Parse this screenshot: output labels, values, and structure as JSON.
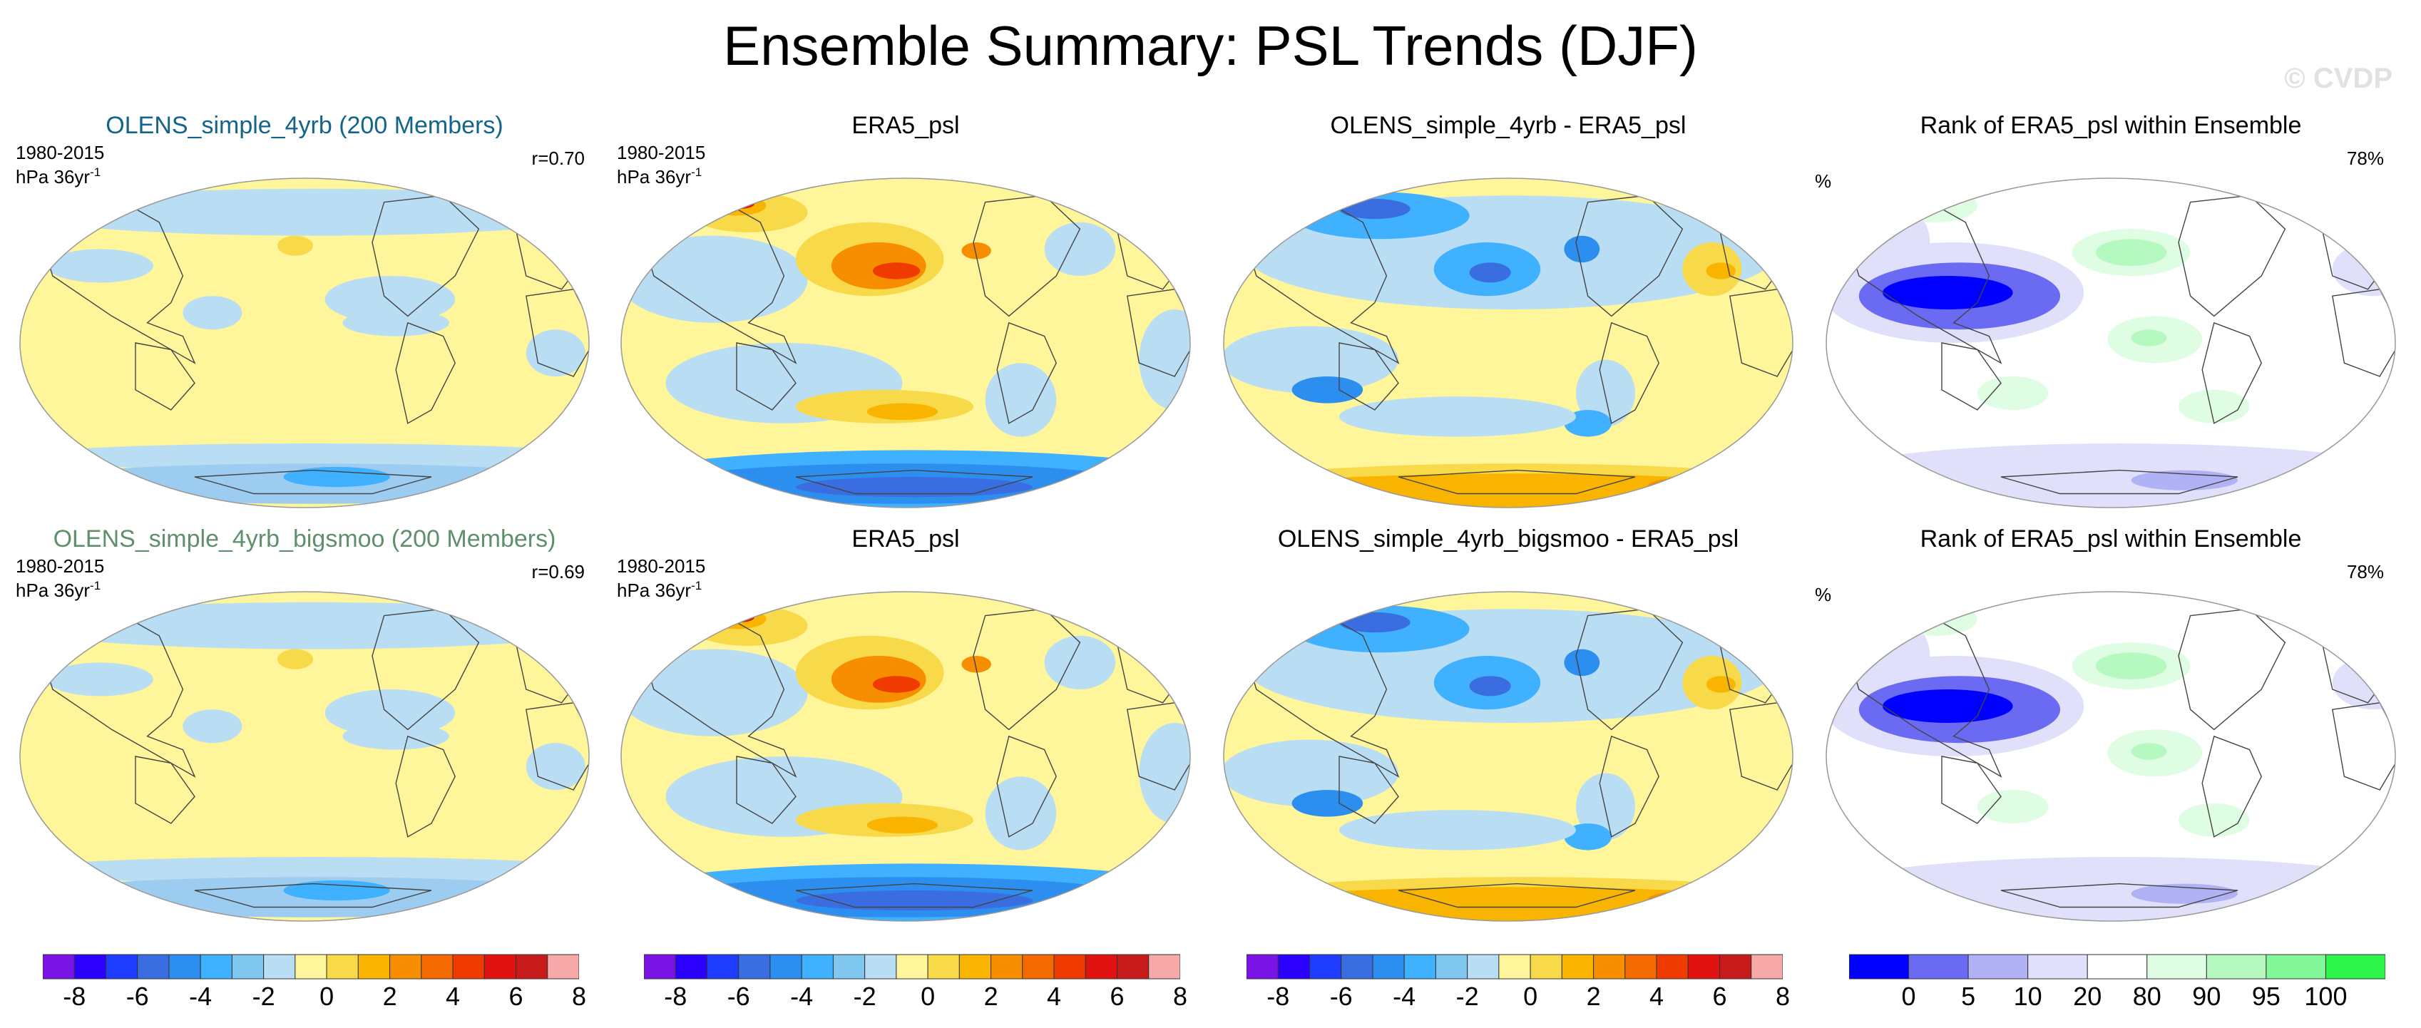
{
  "title": "Ensemble Summary: PSL Trends (DJF)",
  "watermark": "© CVDP",
  "colors": {
    "model_title_row1": "#13648c",
    "model_title_row2": "#5f8f6d",
    "coast": "#444444",
    "psl_scale": [
      "#7a14e6",
      "#2b00ff",
      "#1e3cff",
      "#3a6ee0",
      "#2c8ff0",
      "#3fb1ff",
      "#7fc7ef",
      "#b9def4",
      "#fff59a",
      "#f8d94a",
      "#f9b400",
      "#f78e00",
      "#f36a00",
      "#ef3a00",
      "#e01212",
      "#c81c1c",
      "#f7a9a9"
    ],
    "rank_scale": [
      "#0000ff",
      "#6a6af2",
      "#b1b1f5",
      "#e0e0fa",
      "#ffffff",
      "#dffde3",
      "#b6f9c0",
      "#84f79a",
      "#2ef54a"
    ]
  },
  "rows": [
    {
      "panels": [
        {
          "title": "OLENS_simple_4yrb (200 Members)",
          "period": "1980-2015",
          "units": "hPa 36yr",
          "units_exp": "-1",
          "corr": "r=0.70",
          "pattern": "ens1"
        },
        {
          "title": "ERA5_psl",
          "period": "1980-2015",
          "units": "hPa 36yr",
          "units_exp": "-1",
          "pattern": "obs"
        },
        {
          "title": "OLENS_simple_4yrb - ERA5_psl",
          "pattern": "diff"
        },
        {
          "title": "Rank of ERA5_psl within Ensemble",
          "percent": "78%",
          "unit": "%",
          "pattern": "rank"
        }
      ]
    },
    {
      "panels": [
        {
          "title": "OLENS_simple_4yrb_bigsmoo (200 Members)",
          "period": "1980-2015",
          "units": "hPa 36yr",
          "units_exp": "-1",
          "corr": "r=0.69",
          "pattern": "ens2"
        },
        {
          "title": "ERA5_psl",
          "period": "1980-2015",
          "units": "hPa 36yr",
          "units_exp": "-1",
          "pattern": "obs"
        },
        {
          "title": "OLENS_simple_4yrb_bigsmoo - ERA5_psl",
          "pattern": "diff"
        },
        {
          "title": "Rank of ERA5_psl within Ensemble",
          "percent": "78%",
          "unit": "%",
          "pattern": "rank"
        }
      ]
    }
  ],
  "colorbars": {
    "psl": {
      "ticks": [
        "-8",
        "-6",
        "-4",
        "-2",
        "0",
        "2",
        "4",
        "6",
        "8"
      ]
    },
    "rank": {
      "ticks": [
        "0",
        "5",
        "10",
        "20",
        "80",
        "90",
        "95",
        "100"
      ]
    }
  },
  "chart_data": {
    "type": "heatmap",
    "title": "Ensemble Summary: PSL Trends (DJF)",
    "panels": [
      {
        "title": "OLENS_simple_4yrb (200 Members)",
        "period": "1980-2015",
        "units": "hPa 36yr-1",
        "pattern_correlation": 0.7
      },
      {
        "title": "ERA5_psl",
        "period": "1980-2015",
        "units": "hPa 36yr-1"
      },
      {
        "title": "OLENS_simple_4yrb - ERA5_psl"
      },
      {
        "title": "Rank of ERA5_psl within Ensemble",
        "units": "%",
        "percent": 78
      },
      {
        "title": "OLENS_simple_4yrb_bigsmoo (200 Members)",
        "period": "1980-2015",
        "units": "hPa 36yr-1",
        "pattern_correlation": 0.69
      },
      {
        "title": "ERA5_psl",
        "period": "1980-2015",
        "units": "hPa 36yr-1"
      },
      {
        "title": "OLENS_simple_4yrb_bigsmoo - ERA5_psl"
      },
      {
        "title": "Rank of ERA5_psl within Ensemble",
        "units": "%",
        "percent": 78
      }
    ],
    "psl_levels": [
      -8,
      -7,
      -6,
      -5,
      -4,
      -3,
      -2,
      -1,
      0,
      1,
      2,
      3,
      4,
      5,
      6,
      7,
      8
    ],
    "rank_levels": [
      0,
      5,
      10,
      20,
      80,
      90,
      95,
      100
    ]
  }
}
